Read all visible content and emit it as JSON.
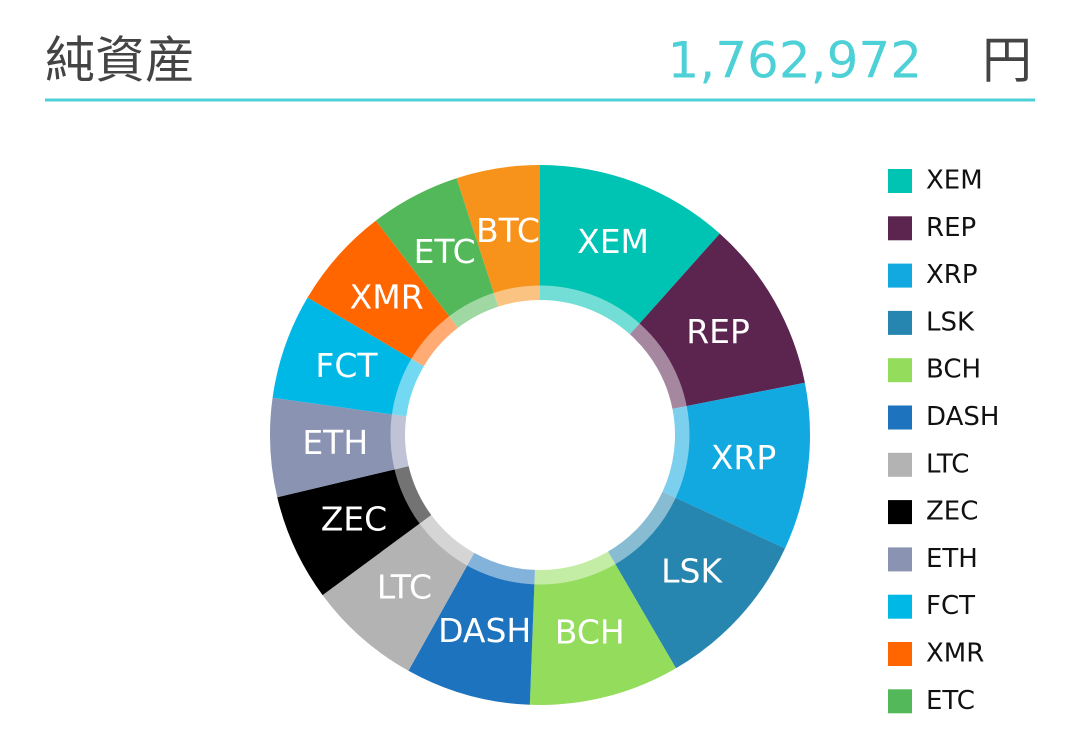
{
  "header": {
    "title": "純資産",
    "amount": "1,762,972",
    "unit": "円"
  },
  "chart_data": {
    "type": "donut",
    "categories": [
      "XEM",
      "REP",
      "XRP",
      "LSK",
      "BCH",
      "DASH",
      "LTC",
      "ZEC",
      "ETH",
      "FCT",
      "XMR",
      "ETC",
      "BTC"
    ],
    "values": [
      11.6,
      10.3,
      10.0,
      9.7,
      9.0,
      7.5,
      6.8,
      6.4,
      5.9,
      6.3,
      6.1,
      5.4,
      5.0
    ],
    "colors": [
      "#00c4b3",
      "#5c2550",
      "#12a9e0",
      "#2686b0",
      "#93dc5c",
      "#1e73be",
      "#b3b3b3",
      "#000000",
      "#8a93b2",
      "#00b8e6",
      "#ff6600",
      "#52b85a",
      "#f7931a"
    ],
    "legend": [
      "XEM",
      "REP",
      "XRP",
      "LSK",
      "BCH",
      "DASH",
      "LTC",
      "ZEC",
      "ETH",
      "FCT",
      "XMR",
      "ETC"
    ]
  }
}
